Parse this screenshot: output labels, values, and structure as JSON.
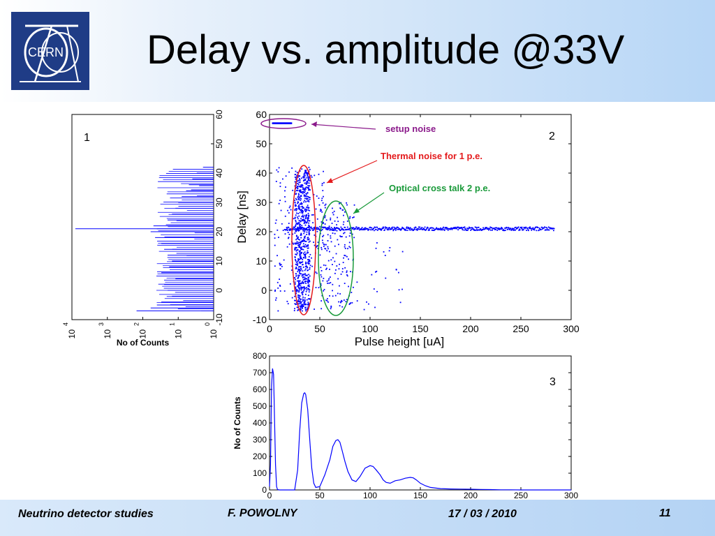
{
  "slide": {
    "title": "Delay vs. amplitude @33V",
    "logo_text": "CERN",
    "footer": {
      "left": "Neutrino detector studies",
      "author": "F. POWOLNY",
      "date": "17 / 03 / 2010",
      "page": "11"
    },
    "colors": {
      "header_blue": "#b7d6f6",
      "logo_bg": "#1f3c86",
      "data_blue": "#0000ff"
    }
  },
  "chart_data": [
    {
      "id": "1",
      "type": "bar",
      "orientation": "horizontal",
      "panel_label": "1",
      "xlabel": "No of Counts",
      "xscale": "log",
      "xlim": [
        10000,
        1
      ],
      "xticks": [
        "10",
        "4",
        "10",
        "3",
        "10",
        "2",
        "10",
        "1",
        "10",
        "0"
      ],
      "ylim": [
        -10,
        60
      ],
      "yticks": [
        "60",
        "50",
        "40",
        "30",
        "20",
        "10",
        "0",
        "-10"
      ],
      "delay_bins": [
        -7,
        -6,
        -5,
        -4,
        -2,
        0,
        2,
        4,
        6,
        8,
        10,
        12,
        14,
        16,
        18,
        20,
        21,
        22,
        24,
        26,
        28,
        30,
        32,
        34,
        36,
        38,
        40,
        42
      ],
      "counts": [
        150,
        60,
        40,
        30,
        15,
        20,
        25,
        12,
        30,
        18,
        15,
        20,
        25,
        30,
        45,
        60,
        8000,
        50,
        20,
        15,
        12,
        10,
        8,
        6,
        5,
        4,
        3,
        2
      ]
    },
    {
      "id": "2",
      "type": "scatter",
      "panel_label": "2",
      "xlabel": "Pulse height [uA]",
      "ylabel": "Delay [ns]",
      "xlim": [
        0,
        300
      ],
      "ylim": [
        -10,
        60
      ],
      "xticks": [
        "0",
        "50",
        "100",
        "150",
        "200",
        "250",
        "300"
      ],
      "yticks": [
        "60",
        "50",
        "40",
        "30",
        "20",
        "10",
        "0",
        "-10"
      ],
      "annotations": [
        {
          "text": "setup noise",
          "color": "#8b1a8b"
        },
        {
          "text": "Thermal noise for 1 p.e.",
          "color": "#e41a1c"
        },
        {
          "text": "Optical cross talk 2 p.e.",
          "color": "#1a9a3a"
        }
      ],
      "clusters": [
        {
          "name": "",
          "x_range": [
            25,
            40
          ],
          "y_range": [
            -7,
            41
          ],
          "n": 700
        },
        {
          "name": "",
          "x_range": [
            5,
            55
          ],
          "y_range": [
            -7,
            42
          ],
          "n": 220
        },
        {
          "name": "",
          "x_range": [
            50,
            85
          ],
          "y_range": [
            -7,
            30
          ],
          "n": 170
        },
        {
          "name": "",
          "x_range": [
            85,
            135
          ],
          "y_range": [
            -7,
            17
          ],
          "n": 25
        }
      ],
      "band": {
        "y": 21,
        "x_range": [
          15,
          283
        ]
      },
      "noise_band": {
        "y": 57,
        "x_range": [
          3,
          22
        ]
      }
    },
    {
      "id": "3",
      "type": "line",
      "panel_label": "3",
      "ylabel": "No of Counts",
      "xlim": [
        0,
        300
      ],
      "ylim": [
        0,
        800
      ],
      "xticks": [
        "0",
        "50",
        "100",
        "150",
        "200",
        "250",
        "300"
      ],
      "yticks": [
        "800",
        "700",
        "600",
        "500",
        "400",
        "300",
        "200",
        "100",
        "0"
      ],
      "x": [
        0,
        1,
        2,
        3,
        4,
        5,
        6,
        7,
        8,
        10,
        12,
        15,
        20,
        25,
        28,
        30,
        32,
        34,
        35,
        36,
        38,
        40,
        42,
        44,
        46,
        50,
        55,
        60,
        63,
        66,
        68,
        70,
        72,
        75,
        78,
        82,
        86,
        90,
        95,
        100,
        103,
        106,
        110,
        113,
        116,
        120,
        125,
        130,
        135,
        140,
        143,
        146,
        150,
        155,
        160,
        170,
        180,
        190,
        200,
        210,
        220,
        230,
        240,
        250,
        260,
        270,
        280,
        290,
        300
      ],
      "values": [
        20,
        150,
        620,
        725,
        690,
        420,
        150,
        20,
        2,
        0,
        0,
        0,
        0,
        0,
        120,
        350,
        520,
        575,
        580,
        570,
        480,
        300,
        130,
        40,
        15,
        20,
        90,
        180,
        260,
        295,
        300,
        285,
        240,
        170,
        110,
        60,
        50,
        80,
        130,
        145,
        140,
        120,
        90,
        60,
        45,
        40,
        55,
        60,
        70,
        75,
        72,
        60,
        40,
        25,
        15,
        8,
        6,
        5,
        4,
        3,
        2,
        1,
        1,
        0,
        0,
        0,
        0,
        0,
        0
      ]
    }
  ]
}
